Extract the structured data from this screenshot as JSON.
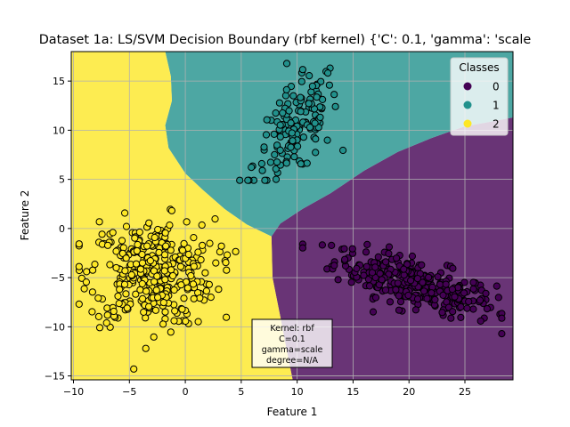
{
  "chart_data": {
    "type": "scatter",
    "title": "Dataset 1a: LS/SVM Decision Boundary (rbf kernel) {'C': 0.1, 'gamma': 'scale",
    "xlabel": "Feature 1",
    "ylabel": "Feature 2",
    "xlim": [
      -10.2,
      29.3
    ],
    "ylim": [
      -15.4,
      18.0
    ],
    "xticks": [
      -10,
      -5,
      0,
      5,
      10,
      15,
      20,
      25
    ],
    "yticks": [
      -15,
      -10,
      -5,
      0,
      5,
      10,
      15
    ],
    "grid": true,
    "legend": {
      "title": "Classes",
      "placement": "top-right",
      "entries": [
        {
          "label": "0",
          "color": "#440154"
        },
        {
          "label": "1",
          "color": "#21918c"
        },
        {
          "label": "2",
          "color": "#fde725"
        }
      ]
    },
    "regions": [
      {
        "class": "0",
        "color": "#440154",
        "polygon": [
          [
            29.3,
            11.3
          ],
          [
            27,
            10.8
          ],
          [
            25,
            10.4
          ],
          [
            22,
            9.2
          ],
          [
            19,
            7.8
          ],
          [
            16,
            5.9
          ],
          [
            13,
            3.6
          ],
          [
            10.5,
            2.0
          ],
          [
            8.5,
            0.5
          ],
          [
            7.7,
            -0.8
          ],
          [
            7.8,
            -5
          ],
          [
            8.5,
            -9
          ],
          [
            9,
            -12
          ],
          [
            9.6,
            -15.4
          ],
          [
            29.3,
            -15.4
          ]
        ]
      },
      {
        "class": "1",
        "color": "#21918c",
        "polygon": [
          [
            -1.8,
            18.0
          ],
          [
            29.3,
            18.0
          ],
          [
            29.3,
            11.3
          ],
          [
            27,
            10.8
          ],
          [
            25,
            10.4
          ],
          [
            22,
            9.2
          ],
          [
            19,
            7.8
          ],
          [
            16,
            5.9
          ],
          [
            13,
            3.6
          ],
          [
            10.5,
            2.0
          ],
          [
            8.5,
            0.5
          ],
          [
            7.7,
            -0.8
          ],
          [
            5.5,
            0.4
          ],
          [
            3.5,
            2.0
          ],
          [
            1.5,
            4.0
          ],
          [
            0,
            5.6
          ],
          [
            -1.5,
            8.2
          ],
          [
            -1.8,
            10.5
          ],
          [
            -1.2,
            13
          ],
          [
            -1.3,
            15.5
          ]
        ]
      },
      {
        "class": "2",
        "color": "#fde725",
        "polygon": [
          [
            -10.2,
            18.0
          ],
          [
            -1.8,
            18.0
          ],
          [
            -1.3,
            15.5
          ],
          [
            -1.2,
            13
          ],
          [
            -1.8,
            10.5
          ],
          [
            -1.5,
            8.2
          ],
          [
            0,
            5.6
          ],
          [
            1.5,
            4.0
          ],
          [
            3.5,
            2.0
          ],
          [
            5.5,
            0.4
          ],
          [
            7.7,
            -0.8
          ],
          [
            7.8,
            -5
          ],
          [
            8.5,
            -9
          ],
          [
            9,
            -12
          ],
          [
            9.6,
            -15.4
          ],
          [
            -10.2,
            -15.4
          ]
        ]
      }
    ],
    "series": [
      {
        "name": "0",
        "color": "#440154",
        "points": 300,
        "center": [
          20.5,
          -5.6
        ],
        "spread": [
          3.6,
          1.2
        ],
        "slope": -0.32,
        "x_range": [
          10.5,
          28.3
        ],
        "y_range": [
          -10.7,
          -1.6
        ]
      },
      {
        "name": "1",
        "color": "#21918c",
        "points": 150,
        "center": [
          9.9,
          10.0
        ],
        "spread": [
          1.9,
          2.3
        ],
        "slope": 0.9,
        "x_range": [
          3.7,
          14.1
        ],
        "y_range": [
          4.9,
          17.1
        ]
      },
      {
        "name": "2",
        "color": "#fde725",
        "points": 350,
        "center": [
          -3.0,
          -4.5
        ],
        "spread": [
          2.8,
          2.7
        ],
        "slope": 0.0,
        "x_range": [
          -9.5,
          4.5
        ],
        "y_range": [
          -14.3,
          3.0
        ]
      }
    ],
    "annotation": [
      "Kernel: rbf",
      "C=0.1",
      "gamma=scale",
      "degree=N/A"
    ]
  }
}
